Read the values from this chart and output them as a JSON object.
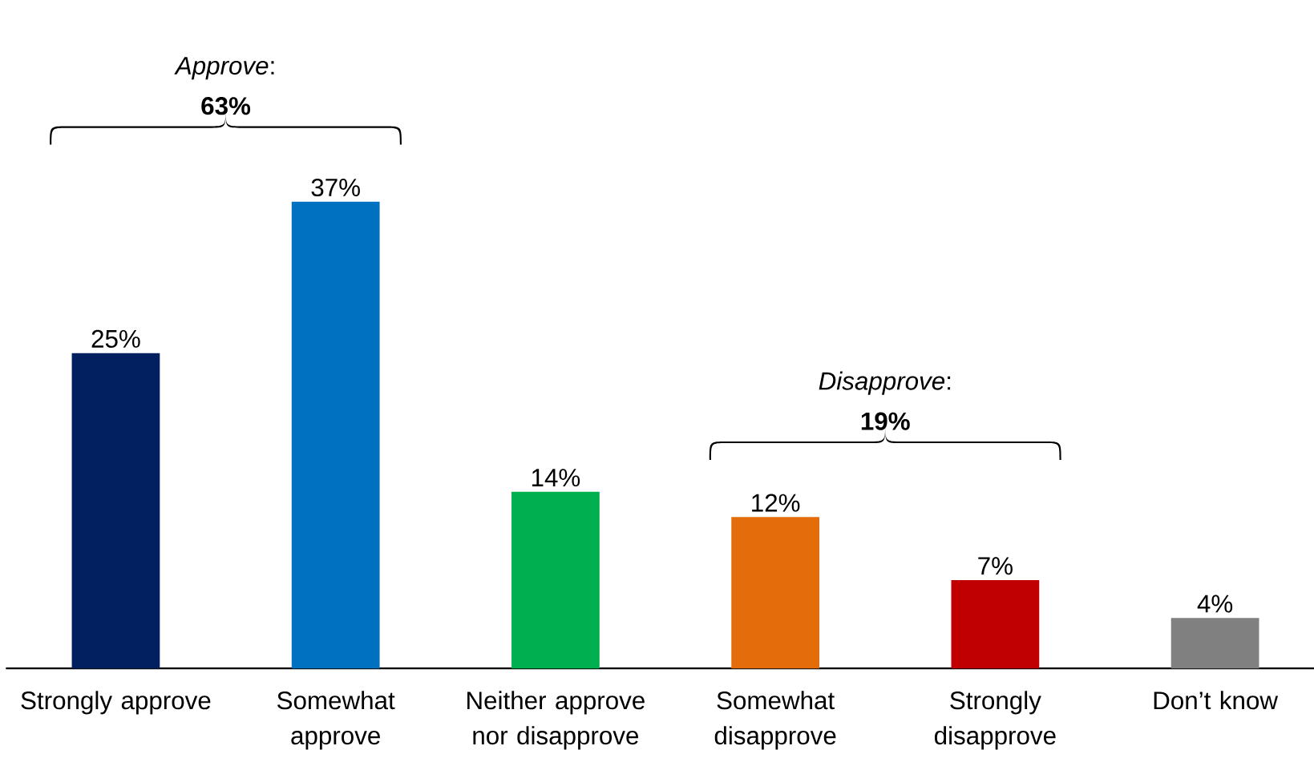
{
  "chart_data": {
    "type": "bar",
    "categories": [
      "Strongly approve",
      "Somewhat approve",
      "Neither approve nor disapprove",
      "Somewhat disapprove",
      "Strongly disapprove",
      "Don’t know"
    ],
    "values": [
      25,
      37,
      14,
      12,
      7,
      4
    ],
    "colors": [
      "#02205f",
      "#0070c0",
      "#00b050",
      "#e46c0a",
      "#c00000",
      "#808080"
    ],
    "value_labels": [
      "25%",
      "37%",
      "14%",
      "12%",
      "7%",
      "4%"
    ],
    "annotations": [
      "*Approve*: **63%**",
      "*Disapprove*: **19%**"
    ]
  }
}
